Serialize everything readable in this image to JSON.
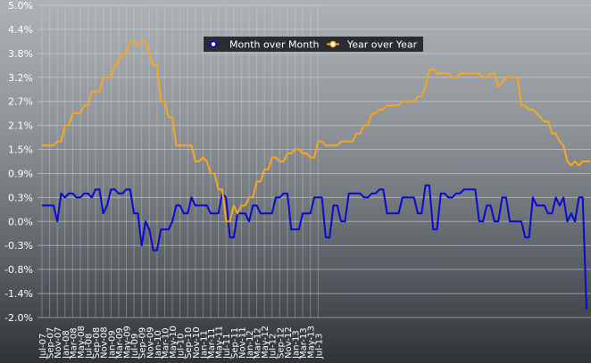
{
  "chart_data": {
    "type": "line",
    "title": "",
    "xlabel": "",
    "ylabel": "",
    "ylim": [
      -2.0,
      5.0
    ],
    "y_ticks": [
      "5.0%",
      "4.4%",
      "3.8%",
      "3.2%",
      "2.7%",
      "2.1%",
      "1.5%",
      "0.9%",
      "0.3%",
      "0.0%",
      "-0.3%",
      "-0.8%",
      "-1.4%",
      "-2.0%"
    ],
    "y_tick_values": [
      5.0,
      4.4,
      3.8,
      3.2,
      2.7,
      2.1,
      1.5,
      0.9,
      0.3,
      0.0,
      -0.3,
      -0.8,
      -1.4,
      -2.0
    ],
    "x_tick_labels": [
      "Jul-07",
      "Sep-07",
      "Nov-07",
      "Jan-08",
      "Mar-08",
      "May-08",
      "Jul-08",
      "Sep-08",
      "Nov-08",
      "Jan-09",
      "Mar-09",
      "May-09",
      "Jul-09",
      "Sep-09",
      "Nov-09",
      "Jan-10",
      "Mar-10",
      "May-10",
      "Jul-10",
      "Sep-10",
      "Nov-10",
      "Jan-11",
      "Mar-11",
      "May-11",
      "Jul-11",
      "Sep-11",
      "Nov-11",
      "Jan-12",
      "Mar-12",
      "May-12",
      "Jul-12",
      "Sep-12",
      "Nov-12",
      "Jan-13",
      "Mar-13",
      "May-13",
      "Jul-13"
    ],
    "grid": true,
    "legend_position": "top-center",
    "series": [
      {
        "name": "Month over Month",
        "color": "#0a0ad2",
        "x_start": "2007-07",
        "x_end": "2013-08",
        "values": [
          0.2,
          0.2,
          0.2,
          0.2,
          0.0,
          0.4,
          0.3,
          0.4,
          0.4,
          0.3,
          0.3,
          0.4,
          0.4,
          0.3,
          0.5,
          0.5,
          0.1,
          0.2,
          0.5,
          0.5,
          0.4,
          0.4,
          0.5,
          0.5,
          0.1,
          0.1,
          -0.3,
          0.0,
          -0.1,
          -0.4,
          -0.4,
          -0.1,
          -0.1,
          -0.1,
          0.0,
          0.2,
          0.2,
          0.1,
          0.1,
          0.3,
          0.2,
          0.2,
          0.2,
          0.2,
          0.1,
          0.1,
          0.1,
          0.4,
          0.3,
          -0.2,
          -0.2,
          0.1,
          0.1,
          0.1,
          0.0,
          0.2,
          0.2,
          0.1,
          0.1,
          0.1,
          0.1,
          0.3,
          0.3,
          0.4,
          0.4,
          -0.1,
          -0.1,
          -0.1,
          0.1,
          0.1,
          0.1,
          0.3,
          0.3,
          0.3,
          -0.2,
          -0.2,
          0.2,
          0.2,
          0.0,
          0.0,
          0.4,
          0.4,
          0.4,
          0.4,
          0.3,
          0.3,
          0.4,
          0.4,
          0.5,
          0.5,
          0.1,
          0.1,
          0.1,
          0.1,
          0.3,
          0.3,
          0.3,
          0.3,
          0.1,
          0.1,
          0.6,
          0.6,
          -0.1,
          -0.1,
          0.4,
          0.4,
          0.3,
          0.3,
          0.4,
          0.4,
          0.5,
          0.5,
          0.5,
          0.5,
          0.0,
          0.0,
          0.2,
          0.2,
          0.0,
          0.0,
          0.3,
          0.3,
          0.0,
          0.0,
          0.0,
          0.0,
          -0.2,
          -0.2,
          0.3,
          0.2,
          0.2,
          0.2,
          0.1,
          0.1,
          0.3,
          0.2,
          0.3,
          0.0,
          0.1,
          0.0,
          0.3,
          0.3,
          -1.8
        ]
      },
      {
        "name": "Year over Year",
        "color": "#f5a623",
        "x_start": "2007-07",
        "x_end": "2013-08",
        "values": [
          1.6,
          1.6,
          1.6,
          1.6,
          1.7,
          1.7,
          2.1,
          2.1,
          2.4,
          2.4,
          2.4,
          2.6,
          2.6,
          2.9,
          2.9,
          2.9,
          3.2,
          3.2,
          3.2,
          3.5,
          3.6,
          3.8,
          3.8,
          4.1,
          4.1,
          4.0,
          4.1,
          4.1,
          3.8,
          3.5,
          3.5,
          2.7,
          2.7,
          2.3,
          2.3,
          1.6,
          1.6,
          1.6,
          1.6,
          1.6,
          1.2,
          1.2,
          1.3,
          1.2,
          0.9,
          0.9,
          0.5,
          0.5,
          0.0,
          0.0,
          0.2,
          0.1,
          0.2,
          0.2,
          0.3,
          0.3,
          0.7,
          0.7,
          1.0,
          1.0,
          1.3,
          1.3,
          1.2,
          1.2,
          1.4,
          1.4,
          1.5,
          1.5,
          1.4,
          1.4,
          1.3,
          1.3,
          1.7,
          1.7,
          1.6,
          1.6,
          1.6,
          1.6,
          1.7,
          1.7,
          1.7,
          1.7,
          1.9,
          1.9,
          2.1,
          2.1,
          2.4,
          2.4,
          2.5,
          2.5,
          2.6,
          2.6,
          2.6,
          2.6,
          2.7,
          2.7,
          2.7,
          2.7,
          2.8,
          2.8,
          3.0,
          3.4,
          3.4,
          3.3,
          3.3,
          3.3,
          3.3,
          3.2,
          3.2,
          3.3,
          3.3,
          3.3,
          3.3,
          3.3,
          3.3,
          3.2,
          3.2,
          3.3,
          3.3,
          3.0,
          3.1,
          3.2,
          3.2,
          3.2,
          3.2,
          2.6,
          2.6,
          2.5,
          2.5,
          2.4,
          2.3,
          2.2,
          2.2,
          1.9,
          1.9,
          1.7,
          1.6,
          1.2,
          1.1,
          1.2,
          1.1,
          1.2,
          1.2,
          1.2
        ]
      }
    ]
  }
}
